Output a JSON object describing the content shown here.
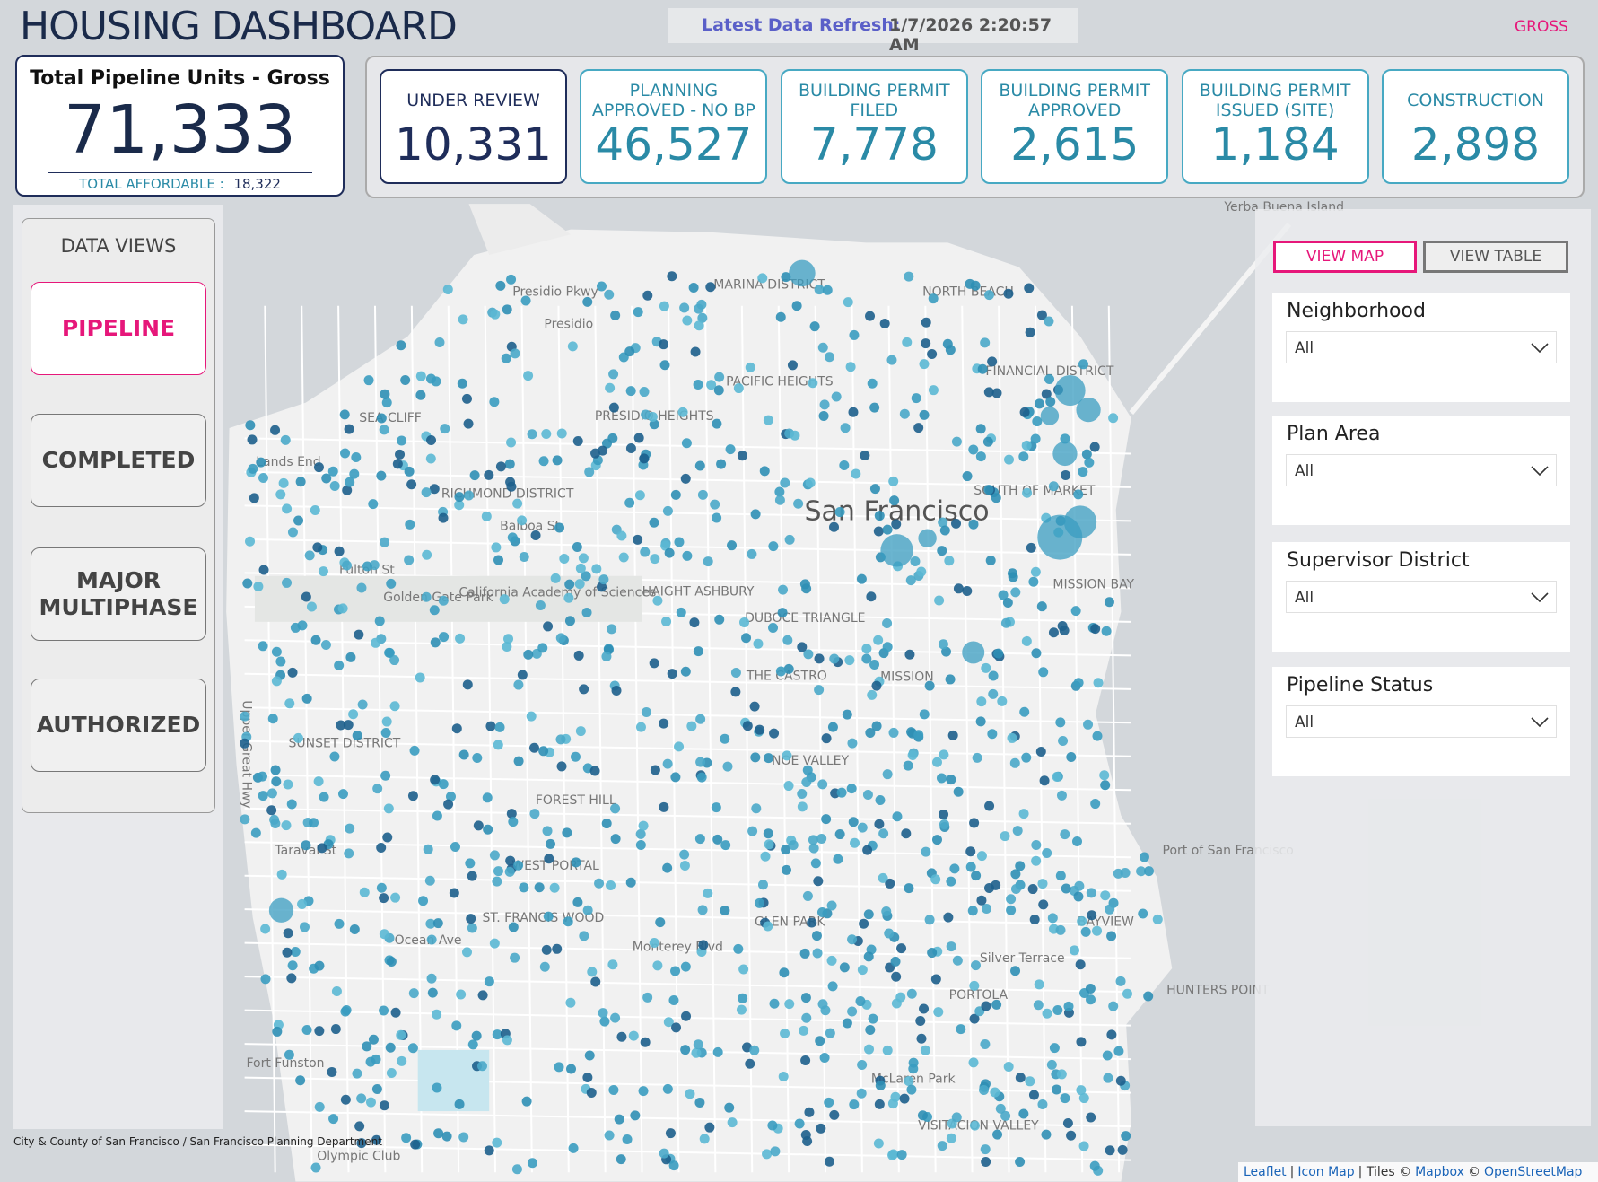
{
  "header": {
    "title": "HOUSING DASHBOARD",
    "refresh_label": "Latest Data Refresh:",
    "refresh_value": "1/7/2026 2:20:57 AM",
    "mode": "GROSS"
  },
  "total": {
    "label": "Total Pipeline Units - Gross",
    "value": "71,333",
    "affordable_label": "TOTAL AFFORDABLE :",
    "affordable_value": "18,322"
  },
  "stages": [
    {
      "label": "UNDER REVIEW",
      "value": "10,331"
    },
    {
      "label": "PLANNING APPROVED - NO BP",
      "value": "46,527"
    },
    {
      "label": "BUILDING PERMIT FILED",
      "value": "7,778"
    },
    {
      "label": "BUILDING PERMIT APPROVED",
      "value": "2,615"
    },
    {
      "label": "BUILDING PERMIT ISSUED (SITE)",
      "value": "1,184"
    },
    {
      "label": "CONSTRUCTION",
      "value": "2,898"
    }
  ],
  "data_views": {
    "title": "DATA VIEWS",
    "buttons": [
      "PIPELINE",
      "COMPLETED",
      "MAJOR MULTIPHASE",
      "AUTHORIZED"
    ]
  },
  "view_buttons": [
    "VIEW MAP",
    "VIEW TABLE"
  ],
  "filters": [
    {
      "label": "Neighborhood",
      "value": "All"
    },
    {
      "label": "Plan Area",
      "value": "All"
    },
    {
      "label": "Supervisor District",
      "value": "All"
    },
    {
      "label": "Pipeline Status",
      "value": "All"
    }
  ],
  "map": {
    "city_label": "San Francisco",
    "labels": [
      "Presidio",
      "Presidio Pkwy",
      "Lands End",
      "SEA CLIFF",
      "RICHMOND DISTRICT",
      "Balboa St",
      "Fulton St",
      "Golden Gate Park",
      "California Academy of Sciences",
      "FINANCIAL DISTRICT",
      "SOUTH OF MARKET",
      "MISSION BAY",
      "SUNSET DISTRICT",
      "Taraval St",
      "Ocean Ave",
      "FOREST HILL",
      "WEST PORTAL",
      "ST. FRANCIS WOOD",
      "GLEN PARK",
      "Monterey Blvd",
      "Silver Terrace",
      "PORTOLA",
      "BAYVIEW",
      "HUNTERS POINT",
      "Port of San Francisco",
      "McLaren Park",
      "Fort Funston",
      "Olympic Club",
      "VISITACION VALLEY",
      "Yerba Buena Island",
      "Upper Great Hwy",
      "THE CASTRO",
      "NOE VALLEY",
      "MARINA DISTRICT",
      "NORTH BEACH",
      "PACIFIC HEIGHTS",
      "PRESIDIO HEIGHTS",
      "HAIGHT ASHBURY",
      "DUBOCE TRIANGLE",
      "MISSION"
    ]
  },
  "footer": {
    "credit": "City & County of San Francisco  /  San Francisco Planning Department",
    "attribution": [
      "Leaflet",
      "|",
      "Icon Map",
      "| Tiles ©",
      "Mapbox",
      "©",
      "OpenStreetMap"
    ]
  }
}
